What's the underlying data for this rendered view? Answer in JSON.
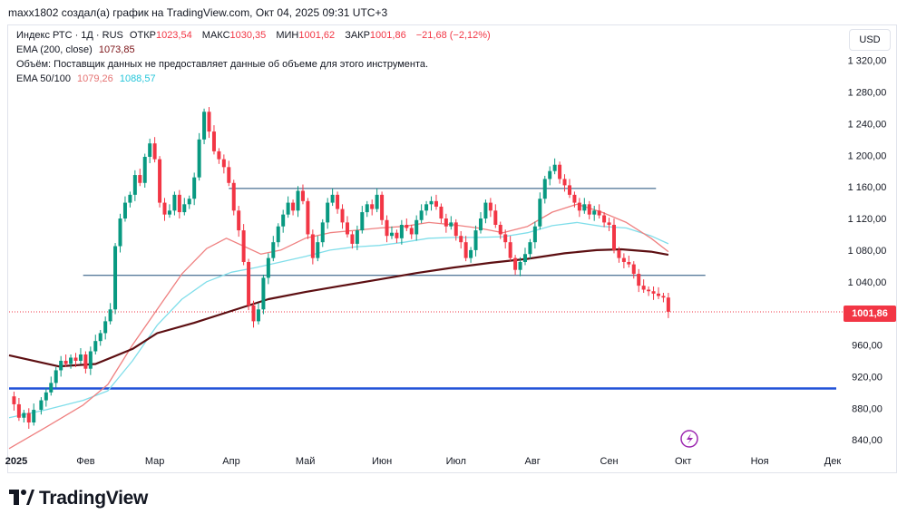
{
  "header": {
    "text": "maxx1802 создал(а) график на TradingView.com, Окт 04, 2025 09:31 UTC+3"
  },
  "legend": {
    "symbol": "Индекс РТС · 1Д · RUS",
    "open_label": "ОТКР",
    "open": "1023,54",
    "high_label": "МАКС",
    "high": "1030,35",
    "low_label": "МИН",
    "low": "1001,62",
    "close_label": "ЗАКР",
    "close": "1001,86",
    "change": "−21,68 (−2,12%)",
    "ema200_label": "EMA (200, close)",
    "ema200_value": "1073,85",
    "volume_text": "Объём: Поставщик данных не предоставляет данные об объеме для этого инструмента.",
    "ema_pair_label": "EMA 50/100",
    "ema50_value": "1079,26",
    "ema100_value": "1088,57"
  },
  "currency": "USD",
  "last_price_label": "1001,86",
  "logo_text": "TradingView",
  "colors": {
    "up": "#089981",
    "down": "#f23645",
    "ema200": "#5d0f12",
    "ema50": "#ef8080",
    "ema100": "#80deea",
    "hline": "#1f4e79",
    "support": "#2051d8"
  },
  "chart_data": {
    "type": "candlestick",
    "title": "Индекс РТС · 1Д · RUS",
    "ylim": [
      823,
      1362
    ],
    "y_ticks": [
      840,
      880,
      920,
      960,
      1000,
      1040,
      1080,
      1120,
      1160,
      1200,
      1240,
      1280,
      1320
    ],
    "y_tick_labels": [
      "840,00",
      "880,00",
      "920,00",
      "960,00",
      "1 000,00",
      "1 040,00",
      "1 080,00",
      "1 120,00",
      "1 160,00",
      "1 200,00",
      "1 240,00",
      "1 280,00",
      "1 320,00"
    ],
    "x_range_days": [
      0,
      335
    ],
    "x_ticks": [
      {
        "day": 0,
        "label": "2025"
      },
      {
        "day": 31,
        "label": "Фев"
      },
      {
        "day": 59,
        "label": "Мар"
      },
      {
        "day": 90,
        "label": "Апр"
      },
      {
        "day": 120,
        "label": "Май"
      },
      {
        "day": 151,
        "label": "Июн"
      },
      {
        "day": 181,
        "label": "Июл"
      },
      {
        "day": 212,
        "label": "Авг"
      },
      {
        "day": 243,
        "label": "Сен"
      },
      {
        "day": 273,
        "label": "Окт"
      },
      {
        "day": 304,
        "label": "Ноя"
      },
      {
        "day": 334,
        "label": "Дек"
      }
    ],
    "close_series": [
      [
        0,
        895
      ],
      [
        2,
        885
      ],
      [
        4,
        868
      ],
      [
        6,
        874
      ],
      [
        8,
        862
      ],
      [
        10,
        878
      ],
      [
        13,
        890
      ],
      [
        15,
        900
      ],
      [
        17,
        912
      ],
      [
        19,
        928
      ],
      [
        21,
        940
      ],
      [
        23,
        936
      ],
      [
        25,
        944
      ],
      [
        27,
        940
      ],
      [
        29,
        948
      ],
      [
        31,
        930
      ],
      [
        33,
        952
      ],
      [
        35,
        965
      ],
      [
        37,
        975
      ],
      [
        39,
        990
      ],
      [
        41,
        1005
      ],
      [
        43,
        1085
      ],
      [
        45,
        1120
      ],
      [
        47,
        1140
      ],
      [
        49,
        1150
      ],
      [
        51,
        1175
      ],
      [
        53,
        1165
      ],
      [
        55,
        1198
      ],
      [
        57,
        1215
      ],
      [
        59,
        1195
      ],
      [
        61,
        1140
      ],
      [
        63,
        1125
      ],
      [
        65,
        1130
      ],
      [
        67,
        1150
      ],
      [
        69,
        1128
      ],
      [
        71,
        1138
      ],
      [
        73,
        1145
      ],
      [
        75,
        1172
      ],
      [
        77,
        1220
      ],
      [
        79,
        1255
      ],
      [
        81,
        1230
      ],
      [
        83,
        1205
      ],
      [
        85,
        1195
      ],
      [
        87,
        1185
      ],
      [
        89,
        1165
      ],
      [
        91,
        1130
      ],
      [
        93,
        1105
      ],
      [
        95,
        1065
      ],
      [
        97,
        1010
      ],
      [
        99,
        990
      ],
      [
        101,
        1005
      ],
      [
        103,
        1045
      ],
      [
        105,
        1070
      ],
      [
        107,
        1090
      ],
      [
        109,
        1110
      ],
      [
        111,
        1125
      ],
      [
        113,
        1140
      ],
      [
        115,
        1130
      ],
      [
        117,
        1155
      ],
      [
        119,
        1142
      ],
      [
        121,
        1100
      ],
      [
        123,
        1070
      ],
      [
        125,
        1090
      ],
      [
        127,
        1115
      ],
      [
        129,
        1140
      ],
      [
        131,
        1150
      ],
      [
        133,
        1132
      ],
      [
        135,
        1115
      ],
      [
        137,
        1100
      ],
      [
        139,
        1088
      ],
      [
        141,
        1105
      ],
      [
        143,
        1128
      ],
      [
        145,
        1138
      ],
      [
        147,
        1132
      ],
      [
        149,
        1150
      ],
      [
        151,
        1118
      ],
      [
        153,
        1098
      ],
      [
        155,
        1102
      ],
      [
        157,
        1095
      ],
      [
        159,
        1112
      ],
      [
        161,
        1108
      ],
      [
        163,
        1100
      ],
      [
        165,
        1118
      ],
      [
        167,
        1130
      ],
      [
        169,
        1138
      ],
      [
        171,
        1142
      ],
      [
        173,
        1135
      ],
      [
        175,
        1120
      ],
      [
        177,
        1110
      ],
      [
        179,
        1115
      ],
      [
        181,
        1098
      ],
      [
        183,
        1090
      ],
      [
        185,
        1070
      ],
      [
        187,
        1080
      ],
      [
        189,
        1105
      ],
      [
        191,
        1120
      ],
      [
        193,
        1140
      ],
      [
        195,
        1130
      ],
      [
        197,
        1112
      ],
      [
        199,
        1100
      ],
      [
        201,
        1090
      ],
      [
        203,
        1070
      ],
      [
        205,
        1055
      ],
      [
        207,
        1065
      ],
      [
        209,
        1075
      ],
      [
        211,
        1090
      ],
      [
        213,
        1110
      ],
      [
        215,
        1145
      ],
      [
        217,
        1170
      ],
      [
        219,
        1180
      ],
      [
        221,
        1188
      ],
      [
        223,
        1170
      ],
      [
        225,
        1162
      ],
      [
        227,
        1150
      ],
      [
        229,
        1140
      ],
      [
        231,
        1130
      ],
      [
        233,
        1138
      ],
      [
        235,
        1125
      ],
      [
        237,
        1130
      ],
      [
        239,
        1124
      ],
      [
        241,
        1115
      ],
      [
        243,
        1112
      ],
      [
        245,
        1080
      ],
      [
        247,
        1070
      ],
      [
        249,
        1065
      ],
      [
        251,
        1062
      ],
      [
        253,
        1050
      ],
      [
        255,
        1035
      ],
      [
        257,
        1030
      ],
      [
        259,
        1028
      ],
      [
        261,
        1025
      ],
      [
        263,
        1022
      ],
      [
        265,
        1020
      ],
      [
        267,
        1002
      ]
    ],
    "ema200": [
      [
        0,
        947
      ],
      [
        20,
        933
      ],
      [
        35,
        936
      ],
      [
        50,
        955
      ],
      [
        60,
        975
      ],
      [
        75,
        988
      ],
      [
        90,
        1003
      ],
      [
        105,
        1018
      ],
      [
        120,
        1027
      ],
      [
        135,
        1035
      ],
      [
        150,
        1043
      ],
      [
        165,
        1051
      ],
      [
        180,
        1058
      ],
      [
        195,
        1064
      ],
      [
        210,
        1069
      ],
      [
        225,
        1076
      ],
      [
        238,
        1080
      ],
      [
        248,
        1081
      ],
      [
        260,
        1078
      ],
      [
        267,
        1074
      ]
    ],
    "ema50": [
      [
        0,
        829
      ],
      [
        15,
        856
      ],
      [
        30,
        884
      ],
      [
        40,
        910
      ],
      [
        50,
        960
      ],
      [
        60,
        1005
      ],
      [
        70,
        1050
      ],
      [
        80,
        1082
      ],
      [
        88,
        1095
      ],
      [
        95,
        1085
      ],
      [
        102,
        1075
      ],
      [
        110,
        1080
      ],
      [
        120,
        1095
      ],
      [
        130,
        1102
      ],
      [
        140,
        1105
      ],
      [
        150,
        1108
      ],
      [
        160,
        1110
      ],
      [
        170,
        1115
      ],
      [
        180,
        1112
      ],
      [
        190,
        1108
      ],
      [
        200,
        1102
      ],
      [
        210,
        1110
      ],
      [
        220,
        1128
      ],
      [
        230,
        1138
      ],
      [
        240,
        1128
      ],
      [
        250,
        1115
      ],
      [
        260,
        1095
      ],
      [
        267,
        1078
      ]
    ],
    "ema100": [
      [
        0,
        868
      ],
      [
        15,
        878
      ],
      [
        30,
        890
      ],
      [
        40,
        902
      ],
      [
        50,
        940
      ],
      [
        60,
        985
      ],
      [
        70,
        1018
      ],
      [
        80,
        1040
      ],
      [
        90,
        1052
      ],
      [
        100,
        1058
      ],
      [
        110,
        1065
      ],
      [
        120,
        1072
      ],
      [
        130,
        1080
      ],
      [
        140,
        1084
      ],
      [
        150,
        1086
      ],
      [
        160,
        1090
      ],
      [
        170,
        1095
      ],
      [
        180,
        1096
      ],
      [
        190,
        1096
      ],
      [
        200,
        1097
      ],
      [
        210,
        1102
      ],
      [
        220,
        1111
      ],
      [
        230,
        1115
      ],
      [
        240,
        1110
      ],
      [
        250,
        1108
      ],
      [
        260,
        1098
      ],
      [
        267,
        1088
      ]
    ],
    "horizontal_levels": [
      {
        "value": 1158,
        "day_start": 89,
        "day_end": 262,
        "color": "#1f4e79"
      },
      {
        "value": 1048,
        "day_start": 30,
        "day_end": 282,
        "color": "#1f4e79"
      },
      {
        "value": 905,
        "day_start": 0,
        "day_end": 335,
        "color": "#2051d8"
      }
    ],
    "last_price": 1001.86
  }
}
